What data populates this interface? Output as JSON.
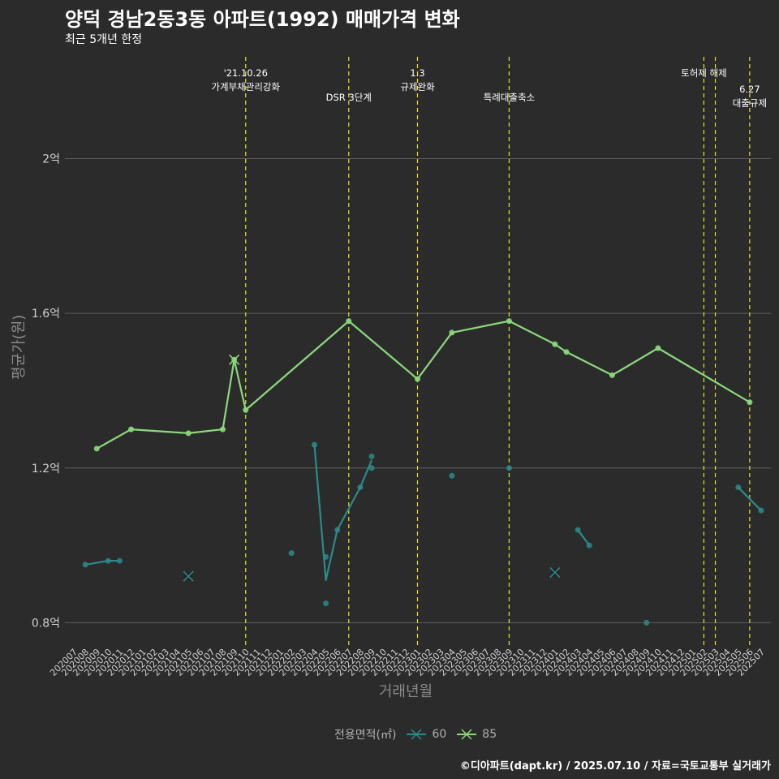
{
  "title": "양덕 경남2동3동 아파트(1992) 매매가격 변화",
  "subtitle": "최근 5개년 한정",
  "caption": "©디아파트(dapt.kr) / 2025.07.10 / 자료=국토교통부 실거래가",
  "colors": {
    "background": "#2b2b2b",
    "grid": "#5e5e5e",
    "event_line": "#e3e32a",
    "series_60": "#2a8b8a",
    "series_85": "#8ad97a"
  },
  "chart_data": {
    "type": "line",
    "title": "양덕 경남2동3동 아파트(1992) 매매가격 변화",
    "subtitle": "최근 5개년 한정",
    "xlabel": "거래년월",
    "ylabel": "평균가(원)",
    "ylim": [
      0.74,
      2.28
    ],
    "yunit": "억",
    "yticks": [
      {
        "value": 0.8,
        "label": "0.8억"
      },
      {
        "value": 1.2,
        "label": "1.2억"
      },
      {
        "value": 1.6,
        "label": "1.6억"
      },
      {
        "value": 2.0,
        "label": "2억"
      }
    ],
    "x_categories": [
      "202007",
      "202008",
      "202009",
      "202010",
      "202011",
      "202012",
      "202101",
      "202102",
      "202103",
      "202104",
      "202105",
      "202106",
      "202107",
      "202108",
      "202109",
      "202110",
      "202111",
      "202112",
      "202201",
      "202202",
      "202203",
      "202204",
      "202205",
      "202206",
      "202207",
      "202208",
      "202209",
      "202210",
      "202211",
      "202212",
      "202301",
      "202302",
      "202303",
      "202304",
      "202305",
      "202306",
      "202307",
      "202308",
      "202309",
      "202310",
      "202311",
      "202312",
      "202401",
      "202402",
      "202403",
      "202404",
      "202405",
      "202406",
      "202407",
      "202408",
      "202409",
      "202410",
      "202411",
      "202412",
      "202501",
      "202502",
      "202503",
      "202504",
      "202505",
      "202506",
      "202507"
    ],
    "legend_title": "전용면적(㎡)",
    "legend_position": "bottom",
    "grid": true,
    "series": [
      {
        "name": "60",
        "color": "#2a8b8a",
        "line": [
          {
            "x": "202008",
            "y": 0.95
          },
          {
            "x": "202010",
            "y": 0.96
          },
          {
            "x": "202011",
            "y": 0.96
          }
        ],
        "line2": [
          {
            "x": "202204",
            "y": 1.26
          },
          {
            "x": "202205",
            "y": 0.91
          },
          {
            "x": "202206",
            "y": 1.04
          },
          {
            "x": "202208",
            "y": 1.15
          },
          {
            "x": "202209",
            "y": 1.22
          }
        ],
        "line3": [
          {
            "x": "202403",
            "y": 1.04
          },
          {
            "x": "202404",
            "y": 1.0
          }
        ],
        "line4": [
          {
            "x": "202505",
            "y": 1.15
          },
          {
            "x": "202507",
            "y": 1.09
          }
        ],
        "points": [
          {
            "x": "202008",
            "y": 0.95
          },
          {
            "x": "202010",
            "y": 0.96
          },
          {
            "x": "202011",
            "y": 0.96
          },
          {
            "x": "202202",
            "y": 0.98
          },
          {
            "x": "202204",
            "y": 1.26
          },
          {
            "x": "202205",
            "y": 0.97
          },
          {
            "x": "202205",
            "y": 0.85
          },
          {
            "x": "202206",
            "y": 1.04
          },
          {
            "x": "202208",
            "y": 1.15
          },
          {
            "x": "202209",
            "y": 1.23
          },
          {
            "x": "202209",
            "y": 1.2
          },
          {
            "x": "202304",
            "y": 1.18
          },
          {
            "x": "202309",
            "y": 1.2
          },
          {
            "x": "202403",
            "y": 1.04
          },
          {
            "x": "202404",
            "y": 1.0
          },
          {
            "x": "202409",
            "y": 0.8
          },
          {
            "x": "202505",
            "y": 1.15
          },
          {
            "x": "202507",
            "y": 1.09
          }
        ],
        "crosses": [
          {
            "x": "202105",
            "y": 0.92
          },
          {
            "x": "202401",
            "y": 0.93
          }
        ]
      },
      {
        "name": "85",
        "color": "#8ad97a",
        "line": [
          {
            "x": "202009",
            "y": 1.25
          },
          {
            "x": "202012",
            "y": 1.3
          },
          {
            "x": "202105",
            "y": 1.29
          },
          {
            "x": "202108",
            "y": 1.3
          },
          {
            "x": "202109",
            "y": 1.48
          },
          {
            "x": "202110",
            "y": 1.35
          },
          {
            "x": "202207",
            "y": 1.58
          },
          {
            "x": "202301",
            "y": 1.43
          },
          {
            "x": "202304",
            "y": 1.55
          },
          {
            "x": "202309",
            "y": 1.58
          },
          {
            "x": "202401",
            "y": 1.52
          },
          {
            "x": "202402",
            "y": 1.5
          },
          {
            "x": "202406",
            "y": 1.44
          },
          {
            "x": "202410",
            "y": 1.51
          },
          {
            "x": "202506",
            "y": 1.37
          }
        ],
        "crosses": [
          {
            "x": "202109",
            "y": 1.48
          }
        ]
      }
    ],
    "events": [
      {
        "x": "202110",
        "label_lines": [
          "'21.10.26",
          "가계부채관리강화"
        ],
        "row": 0
      },
      {
        "x": "202207",
        "label_lines": [
          "DSR 3단계"
        ],
        "row": 1
      },
      {
        "x": "202301",
        "label_lines": [
          "1.3",
          "규제완화"
        ],
        "row": 0
      },
      {
        "x": "202309",
        "label_lines": [
          "특례대출축소"
        ],
        "row": 1
      },
      {
        "x": "202502",
        "label_lines": [
          "토허제 해제"
        ],
        "row": 0
      },
      {
        "x": "202503",
        "label_lines": [],
        "row": 0
      },
      {
        "x": "202506",
        "label_lines": [
          "6.27",
          "대출규제"
        ],
        "row": 1
      }
    ]
  }
}
